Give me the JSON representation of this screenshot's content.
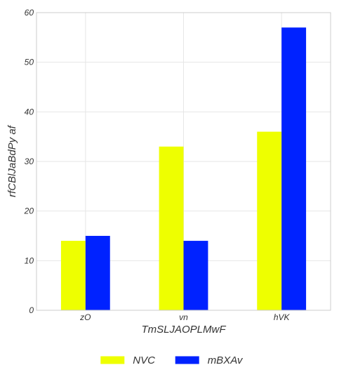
{
  "chart_data": {
    "type": "bar",
    "title": "",
    "xlabel": "TmSLJAOPLMwF",
    "ylabel": "rfCBlJaBdPy af",
    "categories": [
      "zO",
      "vn",
      "hVK"
    ],
    "series": [
      {
        "name": "NVC",
        "values": [
          14,
          33,
          36
        ],
        "color": "#eeff00"
      },
      {
        "name": "mBXAv",
        "values": [
          15,
          14,
          57
        ],
        "color": "#0022ff"
      }
    ],
    "ylim": [
      0,
      60
    ],
    "yticks": [
      0,
      10,
      20,
      30,
      40,
      50,
      60
    ],
    "grid": true,
    "legend_position": "bottom-center"
  }
}
